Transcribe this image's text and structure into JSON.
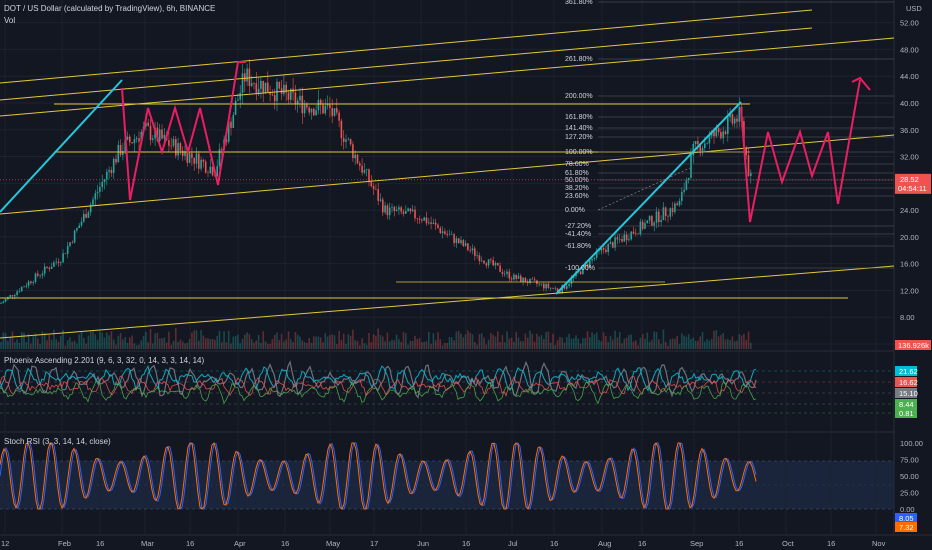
{
  "header": {
    "symbol_title": "DOT / US Dollar (calculated by TradingView), 6h, BINANCE",
    "volume_label": "Vol"
  },
  "price_axis": {
    "currency": "USD",
    "ticks": [
      "56.00",
      "52.00",
      "48.00",
      "44.00",
      "40.00",
      "36.00",
      "32.00",
      "28.00",
      "24.00",
      "20.00",
      "16.00",
      "12.00",
      "8.00",
      "4.00"
    ],
    "last_price": "28.52",
    "countdown": "04:54:11",
    "volume_tag": "136.926k"
  },
  "time_axis": {
    "ticks": [
      "12",
      "Feb",
      "16",
      "Mar",
      "16",
      "Apr",
      "16",
      "May",
      "17",
      "Jun",
      "16",
      "Jul",
      "16",
      "Aug",
      "16",
      "Sep",
      "16",
      "Oct",
      "16",
      "Nov"
    ]
  },
  "fib_levels": [
    "361.80%",
    "261.80%",
    "200.00%",
    "161.80%",
    "141.40%",
    "127.20%",
    "100.00%",
    "78.60%",
    "61.80%",
    "50.00%",
    "38.20%",
    "23.60%",
    "0.00%",
    "-27.20%",
    "-41.40%",
    "-61.80%",
    "-100.00%"
  ],
  "indicator1": {
    "title": "Phoenix Ascending 2.201 (9, 6, 3, 32, 0, 14, 3, 3, 14, 14)",
    "values": [
      "21.62",
      "16.62",
      "15.10",
      "8.44",
      "0.81"
    ],
    "colors": [
      "#00bcd4",
      "#ef5350",
      "#787b86",
      "#4caf50",
      "#4caf50"
    ],
    "axis_ticks": []
  },
  "indicator2": {
    "title": "Stoch RSI (3, 3, 14, 14, close)",
    "axis_ticks": [
      "100.00",
      "75.00",
      "50.00",
      "25.00",
      "0.00"
    ],
    "values": [
      "8.05",
      "7.32"
    ],
    "colors": [
      "#2962ff",
      "#ff6d00"
    ]
  },
  "chart_data": {
    "type": "candlestick",
    "title": "DOT / US Dollar (calculated by TradingView), 6h, BINANCE",
    "x_ticks": [
      "12",
      "Feb",
      "16",
      "Mar",
      "16",
      "Apr",
      "16",
      "May",
      "17",
      "Jun",
      "16",
      "Jul",
      "16",
      "Aug",
      "16",
      "Sep",
      "16",
      "Oct",
      "16",
      "Nov"
    ],
    "ylim": [
      4,
      58
    ],
    "price_path_approx": [
      {
        "x": "12",
        "y": 10
      },
      {
        "x": "Feb",
        "y": 17
      },
      {
        "x": "16",
        "y": 33
      },
      {
        "x": "Mar",
        "y": 36
      },
      {
        "x": "16",
        "y": 30
      },
      {
        "x": "Apr",
        "y": 44
      },
      {
        "x": "16",
        "y": 40
      },
      {
        "x": "May",
        "y": 39
      },
      {
        "x": "17",
        "y": 24
      },
      {
        "x": "Jun",
        "y": 23
      },
      {
        "x": "16",
        "y": 16
      },
      {
        "x": "Jul",
        "y": 14
      },
      {
        "x": "16",
        "y": 12
      },
      {
        "x": "Aug",
        "y": 18
      },
      {
        "x": "16",
        "y": 25
      },
      {
        "x": "Sep",
        "y": 33
      },
      {
        "x": "16",
        "y": 38
      },
      {
        "x": "16",
        "y": 28.52
      }
    ],
    "projection": [
      {
        "x": "16",
        "y": 22
      },
      {
        "x": "Oct",
        "y": 34
      },
      {
        "x": "16",
        "y": 25
      },
      {
        "x": "Nov",
        "y": 43
      }
    ],
    "last_price": 28.52
  }
}
